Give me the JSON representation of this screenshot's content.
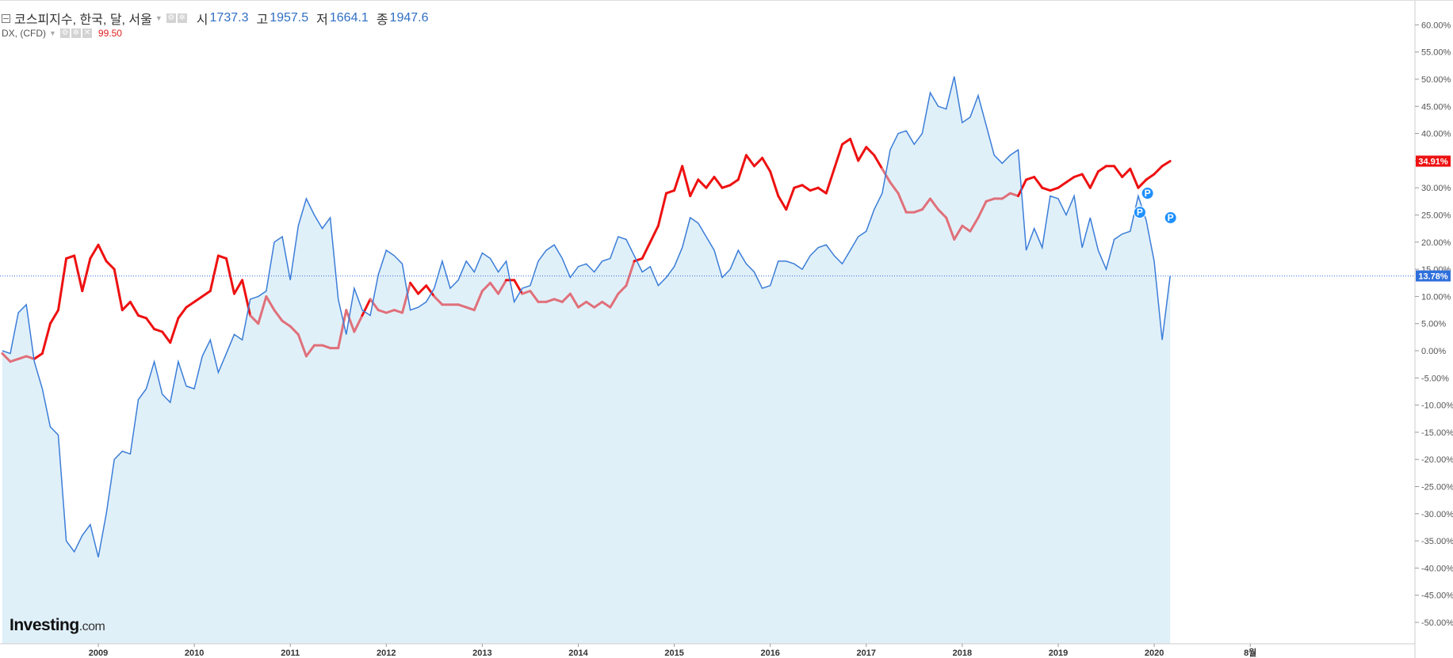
{
  "legend": {
    "kospi_title": "코스피지수, 한국, 달, 서울",
    "open_label": "시",
    "open_value": "1737.3",
    "high_label": "고",
    "high_value": "1957.5",
    "low_label": "저",
    "low_value": "1664.1",
    "close_label": "종",
    "close_value": "1947.6",
    "dx_title": "DX, (CFD)",
    "dx_value": "99.50"
  },
  "branding": {
    "logo_main": "Investing",
    "logo_suffix": ".com"
  },
  "colors": {
    "kospi_line": "#3b7dd8",
    "kospi_fill": "#e0f0f9",
    "dx_strong": "#ee1111",
    "dx_faded": "#e0707a",
    "badge_blue": "#2f6fdc",
    "badge_red": "#ee1111"
  },
  "chart_data": {
    "type": "line",
    "x_unit": "year (fractional, monthly)",
    "y_unit": "percent change",
    "ylim": [
      -54,
      64
    ],
    "xlim": [
      2008.0,
      2020.75
    ],
    "y_ticks": [
      "60.00%",
      "55.00%",
      "50.00%",
      "45.00%",
      "40.00%",
      "35.00%",
      "30.00%",
      "25.00%",
      "20.00%",
      "15.00%",
      "10.00%",
      "5.00%",
      "0.00%",
      "-5.00%",
      "-10.00%",
      "-15.00%",
      "-20.00%",
      "-25.00%",
      "-30.00%",
      "-35.00%",
      "-40.00%",
      "-45.00%",
      "-50.00%"
    ],
    "x_ticks": [
      "2009",
      "2010",
      "2011",
      "2012",
      "2013",
      "2014",
      "2015",
      "2016",
      "2017",
      "2018",
      "2019",
      "2020",
      "8월"
    ],
    "series": [
      {
        "name": "코스피지수",
        "x_start": 2008.0,
        "x_step": 0.08333,
        "values": [
          0,
          -0.5,
          7,
          8.5,
          -2,
          -7,
          -14,
          -15.5,
          -35,
          -37,
          -34,
          -32,
          -38,
          -30,
          -20,
          -18.5,
          -19,
          -9,
          -7,
          -2,
          -8,
          -9.5,
          -2,
          -6.5,
          -7,
          -1,
          2,
          -4,
          -0.5,
          3,
          2,
          9.5,
          10,
          11,
          20,
          21,
          13,
          23,
          28,
          25,
          22.5,
          24.5,
          9.5,
          3,
          11.5,
          7.5,
          6.5,
          14,
          18.5,
          17.5,
          16,
          7.5,
          8,
          9,
          11.5,
          16.5,
          11.5,
          13,
          16.5,
          14.5,
          18,
          17,
          14.5,
          16.5,
          9,
          11.5,
          12,
          16.5,
          18.5,
          19.5,
          17,
          13.5,
          15.5,
          16,
          14.5,
          16.5,
          17,
          21,
          20.5,
          17.5,
          14.5,
          15.5,
          12,
          13.5,
          15.5,
          19,
          24.5,
          23.5,
          21,
          18.5,
          13.5,
          15,
          18.5,
          16,
          14.5,
          11.5,
          12,
          16.5,
          16.5,
          16,
          15,
          17.5,
          19,
          19.5,
          17.5,
          16,
          18.5,
          21,
          22,
          26,
          29,
          37,
          40,
          40.5,
          38,
          40,
          47.5,
          45,
          44.5,
          50.5,
          42,
          43,
          47,
          41.5,
          36,
          34.5,
          36,
          37,
          18.5,
          22.5,
          19,
          28.5,
          28,
          25,
          28.5,
          19,
          24.5,
          18.5,
          15,
          20.5,
          21.5,
          22,
          28.5,
          24,
          16.5,
          2,
          13.78
        ]
      },
      {
        "name": "DX",
        "x_start": 2008.0,
        "x_step": 0.08333,
        "values": [
          -0.5,
          -2,
          -1.5,
          -1,
          -1.5,
          -0.5,
          5,
          7.5,
          17,
          17.5,
          11,
          17,
          19.5,
          16.5,
          15,
          7.5,
          9,
          6.5,
          6,
          4,
          3.5,
          1.5,
          6,
          8,
          9,
          10,
          11,
          17.5,
          17,
          10.5,
          13,
          6.5,
          5,
          10,
          7.5,
          5.5,
          4.5,
          3,
          -1,
          1,
          1,
          0.5,
          0.5,
          7.5,
          3.5,
          6.5,
          9.5,
          7.5,
          7,
          7.5,
          7,
          12.5,
          10.5,
          12,
          10,
          8.5,
          8.5,
          8.5,
          8,
          7.5,
          11,
          12.5,
          10.5,
          13,
          13,
          10.5,
          11,
          9,
          9,
          9.5,
          9,
          10.5,
          8,
          9,
          8,
          9,
          8,
          10.5,
          12,
          16.5,
          17,
          20,
          23,
          29,
          29.5,
          34,
          28.5,
          31.5,
          30,
          32,
          30,
          30.5,
          31.5,
          36,
          34,
          35.5,
          33,
          28.5,
          26,
          30,
          30.5,
          29.5,
          30,
          29,
          33.5,
          38,
          39,
          35,
          37.5,
          36,
          33.5,
          31,
          29,
          25.5,
          25.5,
          26,
          28,
          26,
          24.5,
          20.5,
          23,
          22,
          24.5,
          27.5,
          28,
          28,
          29,
          28.5,
          31.5,
          32,
          30,
          29.5,
          30,
          31,
          32,
          32.5,
          30,
          33,
          34,
          34,
          32,
          33.5,
          30,
          31.5,
          32.5,
          34,
          34.91
        ]
      }
    ],
    "annotations": {
      "kospi_last_label": "13.78%",
      "dx_last_label": "34.91%",
      "event_markers": [
        "P",
        "P",
        "P"
      ]
    }
  }
}
